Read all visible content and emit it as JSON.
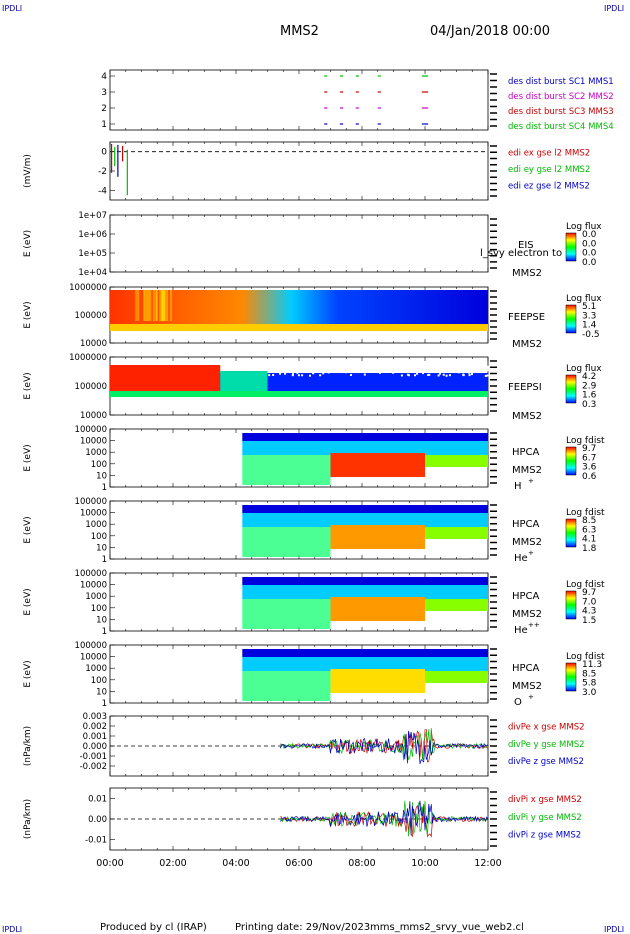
{
  "header": {
    "corner_left_top": "IPDLI",
    "corner_right_top": "IPDLI",
    "corner_left_bottom": "IPDLI",
    "corner_right_bottom": "IPDLI",
    "spacecraft": "MMS2",
    "datetime": "04/Jan/2018 00:00"
  },
  "footer": {
    "produced_by": "Produced by cl (IRAP)",
    "printing_date": "Printing date: 29/Nov/2023",
    "script_name": "mms_mms2_srvy_vue_web2.cl"
  },
  "colors": {
    "red": "#cc0000",
    "green": "#00bb00",
    "blue": "#0000cc",
    "magenta": "#cc00cc",
    "dark_blue": "#000099"
  },
  "time_axis": {
    "range_hours": [
      0,
      12
    ],
    "tick_labels": [
      "00:00",
      "02:00",
      "04:00",
      "06:00",
      "08:00",
      "10:00",
      "12:00"
    ]
  },
  "chart_data": [
    {
      "type": "scatter",
      "id": "burst",
      "ylim": [
        0.5,
        4.5
      ],
      "y_ticks": [
        "1",
        "2",
        "3",
        "4"
      ],
      "legend": [
        {
          "label": "des dist burst SC1 MMS1",
          "color": "#0000cc"
        },
        {
          "label": "des dist burst SC2 MMS2",
          "color": "#cc00cc"
        },
        {
          "label": "des dist burst SC3 MMS3",
          "color": "#cc0000"
        },
        {
          "label": "des dist burst SC4 MMS4",
          "color": "#00bb00"
        }
      ],
      "intervals_hours": [
        [
          6.8,
          6.9
        ],
        [
          7.3,
          7.4
        ],
        [
          7.8,
          7.9
        ],
        [
          8.5,
          8.6
        ],
        [
          9.9,
          10.1
        ]
      ]
    },
    {
      "type": "line",
      "id": "edi",
      "ylabel": "(mV/m)",
      "ylim": [
        -5,
        1
      ],
      "y_ticks": [
        "0",
        "-2",
        "-4"
      ],
      "legend": [
        {
          "label": "edi ex gse l2 MMS2",
          "color": "#cc0000"
        },
        {
          "label": "edi ey gse l2 MMS2",
          "color": "#00bb00"
        },
        {
          "label": "edi ez gse l2 MMS2",
          "color": "#0000cc"
        }
      ],
      "spikes": [
        {
          "x": 0.05,
          "ymin": -2.2,
          "ymax": 0.8
        },
        {
          "x": 0.15,
          "ymin": -1.5,
          "ymax": 0.5
        },
        {
          "x": 0.25,
          "ymin": -2.6,
          "ymax": 0.7
        },
        {
          "x": 0.4,
          "ymin": -1.0,
          "ymax": 0.6
        },
        {
          "x": 0.55,
          "ymin": -4.5,
          "ymax": 0.2
        }
      ]
    },
    {
      "type": "heatmap",
      "id": "eis",
      "ylabel": "E (eV)",
      "y_ticks": [
        "1e+07",
        "1e+06",
        "1e+05",
        "1e+04"
      ],
      "instrument": "EIS",
      "spacecraft": "MMS2",
      "overlay_text": "l_svy electron to",
      "colorbar_title": "Log flux",
      "colorbar_labels": [
        "0.0",
        "0.0",
        "0.0",
        "0.0"
      ]
    },
    {
      "type": "heatmap",
      "id": "feepse",
      "ylabel": "E (eV)",
      "y_ticks": [
        "1000000",
        "100000",
        "10000"
      ],
      "instrument": "FEEPSE",
      "spacecraft": "MMS2",
      "colorbar_title": "Log flux",
      "colorbar_labels": [
        "5.1",
        "3.3",
        "1.4",
        "-0.5"
      ]
    },
    {
      "type": "heatmap",
      "id": "feepsi",
      "ylabel": "E (eV)",
      "y_ticks": [
        "1000000",
        "100000",
        "10000"
      ],
      "instrument": "FEEPSI",
      "spacecraft": "MMS2",
      "colorbar_title": "Log flux",
      "colorbar_labels": [
        "4.2",
        "2.9",
        "1.6",
        "0.3"
      ]
    },
    {
      "type": "heatmap",
      "id": "hpca_h",
      "ylabel": "E (eV)",
      "y_ticks": [
        "100000",
        "10000",
        "1000",
        "100",
        "10",
        "1"
      ],
      "instrument": "HPCA",
      "spacecraft": "MMS2",
      "species": "H",
      "species_charge": "+",
      "colorbar_title": "Log fdist",
      "colorbar_labels": [
        "9.7",
        "6.7",
        "3.6",
        "0.6"
      ]
    },
    {
      "type": "heatmap",
      "id": "hpca_he1",
      "ylabel": "E (eV)",
      "y_ticks": [
        "100000",
        "10000",
        "1000",
        "100",
        "10",
        "1"
      ],
      "instrument": "HPCA",
      "spacecraft": "MMS2",
      "species": "He",
      "species_charge": "+",
      "colorbar_title": "Log fdist",
      "colorbar_labels": [
        "8.5",
        "6.3",
        "4.1",
        "1.8"
      ]
    },
    {
      "type": "heatmap",
      "id": "hpca_he2",
      "ylabel": "E (eV)",
      "y_ticks": [
        "100000",
        "10000",
        "1000",
        "100",
        "10",
        "1"
      ],
      "instrument": "HPCA",
      "spacecraft": "MMS2",
      "species": "He",
      "species_charge": "++",
      "colorbar_title": "Log fdist",
      "colorbar_labels": [
        "9.7",
        "7.0",
        "4.3",
        "1.5"
      ]
    },
    {
      "type": "heatmap",
      "id": "hpca_o",
      "ylabel": "E (eV)",
      "y_ticks": [
        "100000",
        "10000",
        "1000",
        "100",
        "10",
        "1"
      ],
      "instrument": "HPCA",
      "spacecraft": "MMS2",
      "species": "O",
      "species_charge": "+",
      "colorbar_title": "Log fdist",
      "colorbar_labels": [
        "11.3",
        "8.5",
        "5.8",
        "3.0"
      ]
    },
    {
      "type": "line",
      "id": "divpe",
      "ylabel": "(nPa/km)",
      "ylim": [
        -0.003,
        0.003
      ],
      "y_ticks": [
        "0.003",
        "0.002",
        "0.001",
        "0.000",
        "-0.001",
        "-0.002"
      ],
      "legend": [
        {
          "label": "divPe x gse MMS2",
          "color": "#cc0000"
        },
        {
          "label": "divPe y gse MMS2",
          "color": "#00bb00"
        },
        {
          "label": "divPe z gse MMS2",
          "color": "#0000cc"
        }
      ]
    },
    {
      "type": "line",
      "id": "divpi",
      "ylabel": "(nPa/km)",
      "ylim": [
        -0.015,
        0.015
      ],
      "y_ticks": [
        "0.01",
        "0.00",
        "-0.01"
      ],
      "legend": [
        {
          "label": "divPi x gse MMS2",
          "color": "#cc0000"
        },
        {
          "label": "divPi y gse MMS2",
          "color": "#00bb00"
        },
        {
          "label": "divPi z gse MMS2",
          "color": "#0000cc"
        }
      ]
    }
  ]
}
